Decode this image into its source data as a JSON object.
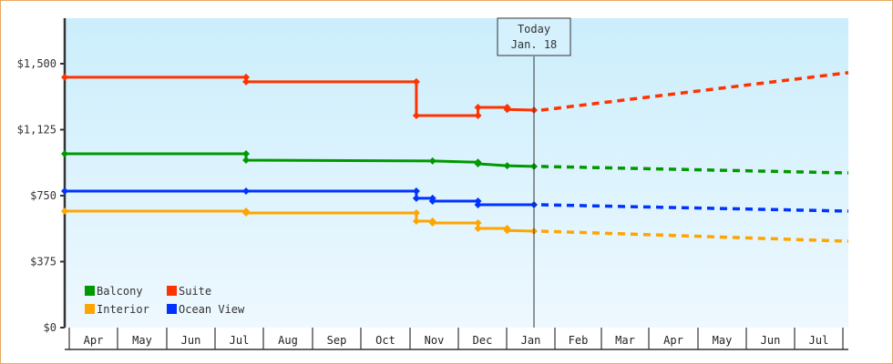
{
  "chart_data": {
    "type": "line",
    "title": "",
    "xlabel": "",
    "ylabel": "",
    "ylim": [
      0,
      1750
    ],
    "y_ticks": [
      "$0",
      "$375",
      "$750",
      "$1,125",
      "$1,500"
    ],
    "y_tick_values": [
      0,
      375,
      750,
      1125,
      1500
    ],
    "x_ticks": [
      "Apr",
      "May",
      "Jun",
      "Jul",
      "Aug",
      "Sep",
      "Oct",
      "Nov",
      "Dec",
      "Jan",
      "Feb",
      "Mar",
      "Apr",
      "May",
      "Jun",
      "Jul"
    ],
    "grid": false,
    "legend_position": "lower-left inside",
    "annotation": {
      "line1": "Today",
      "line2": "Jan. 18"
    },
    "series": [
      {
        "name": "Balcony",
        "color": "#009900",
        "historical": [
          [
            "Apr 1",
            988
          ],
          [
            "Jul 20",
            988
          ],
          [
            "Jul 20",
            952
          ],
          [
            "Nov 15",
            947
          ],
          [
            "Dec 13",
            940
          ],
          [
            "Dec 13",
            931
          ],
          [
            "Jan 1",
            920
          ],
          [
            "Jan 18",
            916
          ]
        ],
        "forecast_end": [
          "Jul 31",
          879
        ]
      },
      {
        "name": "Suite",
        "color": "#ff3300",
        "historical": [
          [
            "Apr 1",
            1423
          ],
          [
            "Jul 20",
            1423
          ],
          [
            "Jul 20",
            1397
          ],
          [
            "Nov 5",
            1397
          ],
          [
            "Nov 5",
            1205
          ],
          [
            "Dec 13",
            1205
          ],
          [
            "Dec 13",
            1252
          ],
          [
            "Jan 1",
            1252
          ],
          [
            "Jan 1",
            1240
          ],
          [
            "Jan 18",
            1236
          ]
        ],
        "forecast_end": [
          "Jul 31",
          1449
        ]
      },
      {
        "name": "Interior",
        "color": "#ffa500",
        "historical": [
          [
            "Apr 1",
            662
          ],
          [
            "Jul 20",
            662
          ],
          [
            "Jul 20",
            652
          ],
          [
            "Nov 5",
            652
          ],
          [
            "Nov 5",
            605
          ],
          [
            "Nov 15",
            605
          ],
          [
            "Nov 15",
            595
          ],
          [
            "Dec 13",
            595
          ],
          [
            "Dec 13",
            564
          ],
          [
            "Jan 1",
            564
          ],
          [
            "Jan 1",
            552
          ],
          [
            "Jan 18",
            548
          ]
        ],
        "forecast_end": [
          "Jul 31",
          491
        ]
      },
      {
        "name": "Ocean View",
        "color": "#0033ff",
        "historical": [
          [
            "Apr 1",
            776
          ],
          [
            "Jul 20",
            776
          ],
          [
            "Nov 5",
            776
          ],
          [
            "Nov 5",
            735
          ],
          [
            "Nov 15",
            735
          ],
          [
            "Nov 15",
            719
          ],
          [
            "Dec 13",
            719
          ],
          [
            "Dec 13",
            698
          ],
          [
            "Jan 18",
            698
          ]
        ],
        "forecast_end": [
          "Jul 31",
          662
        ]
      }
    ]
  },
  "legend": [
    {
      "label": "Balcony",
      "color": "#009900"
    },
    {
      "label": "Suite",
      "color": "#ff3300"
    },
    {
      "label": "Interior",
      "color": "#ffa500"
    },
    {
      "label": "Ocean View",
      "color": "#0033ff"
    }
  ],
  "today_marker": {
    "line1": "Today",
    "line2": "Jan. 18"
  }
}
